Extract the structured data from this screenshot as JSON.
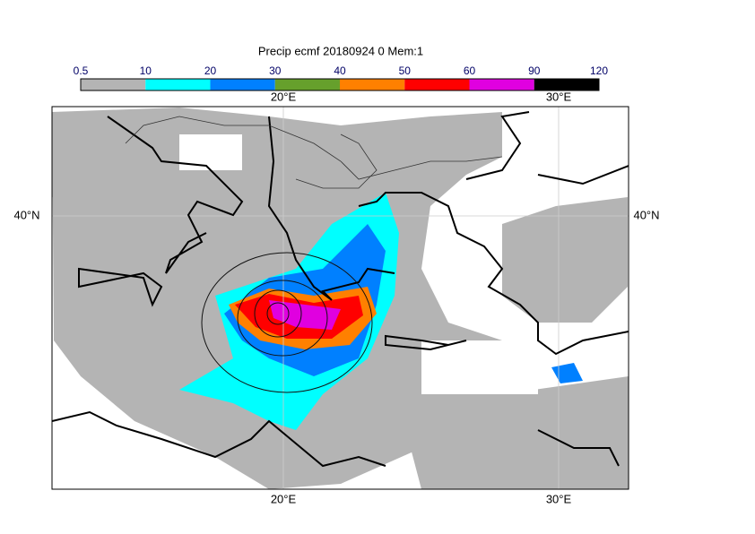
{
  "title": "Precip ecmf 20180924 0 Mem:1",
  "colorbar": {
    "levels": [
      0.5,
      10,
      20,
      30,
      40,
      50,
      60,
      90,
      120
    ],
    "colors": [
      "#b4b4b4",
      "#00ffff",
      "#0080ff",
      "#66a02c",
      "#ff8000",
      "#ff0000",
      "#e000e0",
      "#000000"
    ]
  },
  "labels": {
    "top": [
      "20°E",
      "30°E"
    ],
    "bottom": [
      "20°E",
      "30°E"
    ],
    "left": [
      "40°N"
    ],
    "right": [
      "40°N"
    ]
  }
}
